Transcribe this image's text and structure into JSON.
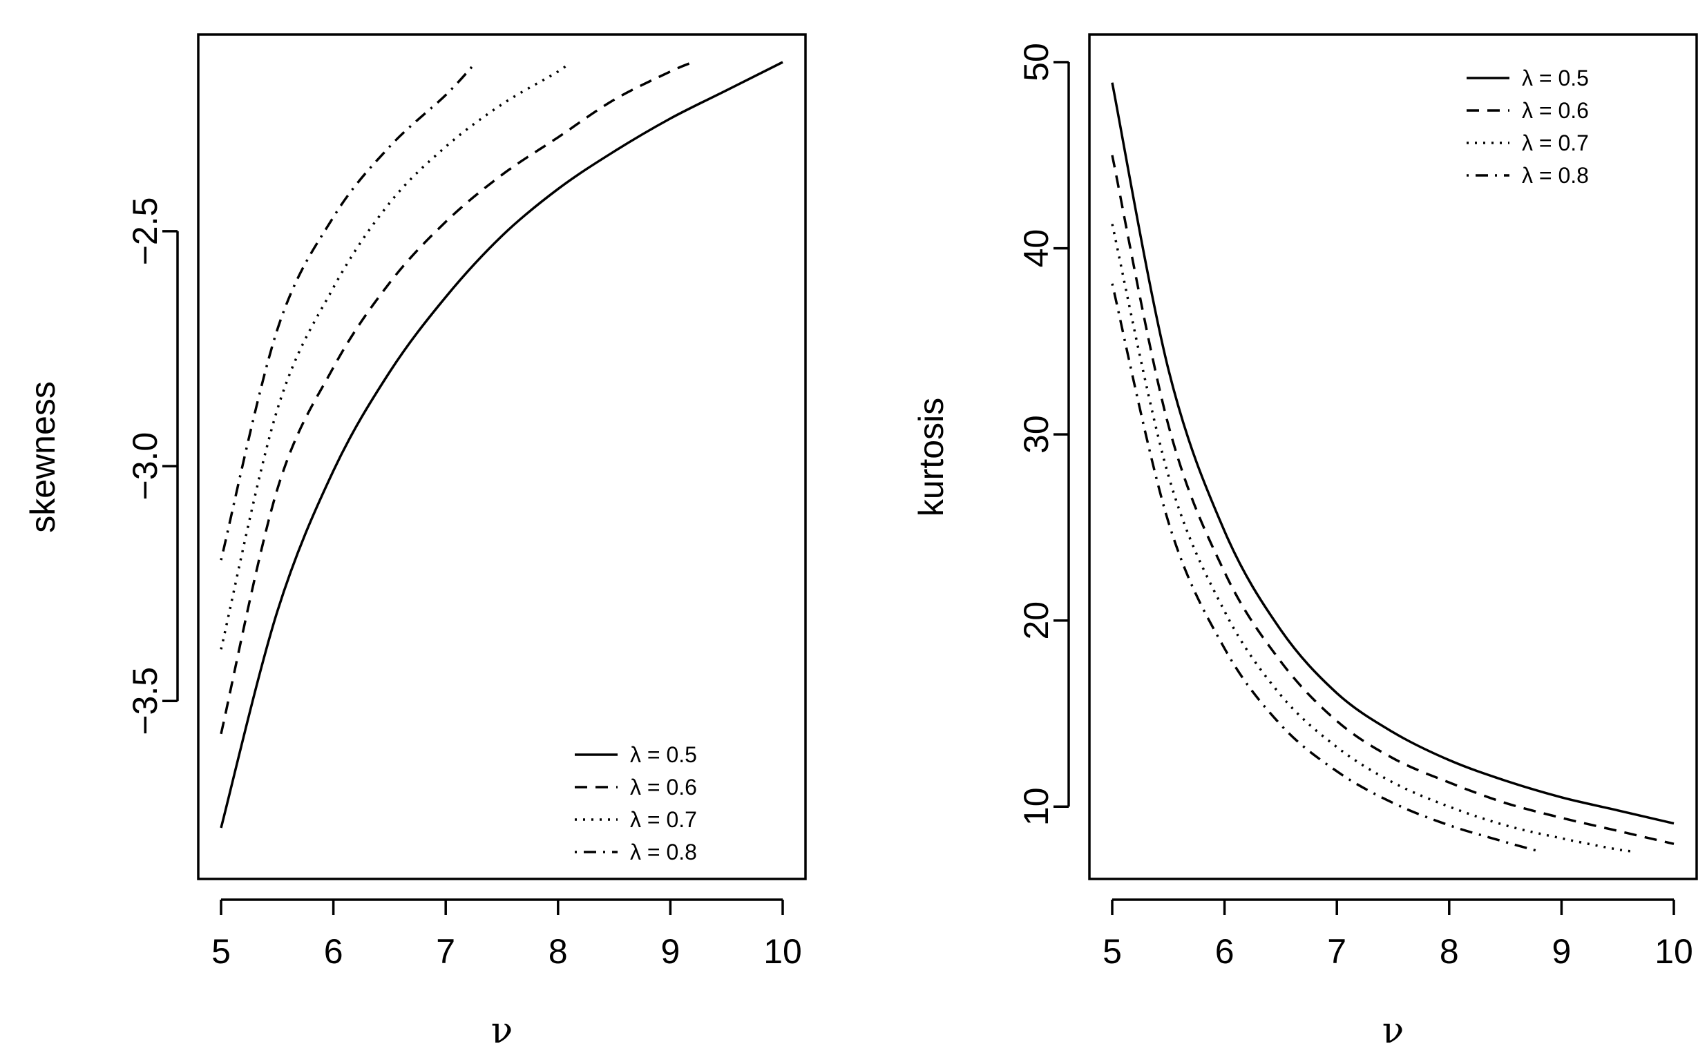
{
  "chart_data": [
    {
      "type": "line",
      "title": "",
      "xlabel": "ν",
      "ylabel": "skewness",
      "xlim": [
        5,
        10
      ],
      "ylim": [
        -3.82,
        -2.14
      ],
      "xticks": [
        "5",
        "6",
        "7",
        "8",
        "9",
        "10"
      ],
      "yticks": [
        "-3.5",
        "-3.0",
        "-2.5"
      ],
      "grid": false,
      "legend_position": "bottom-right",
      "series": [
        {
          "name": "λ = 0.5",
          "linestyle": "solid",
          "x": [
            5,
            5.5,
            6,
            6.5,
            7,
            7.5,
            8,
            8.5,
            9,
            9.5,
            10
          ],
          "y": [
            -3.77,
            -3.31,
            -3.01,
            -2.8,
            -2.64,
            -2.51,
            -2.41,
            -2.33,
            -2.26,
            -2.2,
            -2.14
          ]
        },
        {
          "name": "λ = 0.6",
          "linestyle": "dashed",
          "x": [
            5,
            5.5,
            6,
            6.5,
            7,
            7.5,
            8,
            8.5,
            9,
            9.2
          ],
          "y": [
            -3.57,
            -3.05,
            -2.79,
            -2.61,
            -2.48,
            -2.38,
            -2.3,
            -2.22,
            -2.16,
            -2.14
          ]
        },
        {
          "name": "λ = 0.7",
          "linestyle": "dotted",
          "x": [
            5,
            5.5,
            6,
            6.5,
            7,
            7.5,
            8,
            8.1
          ],
          "y": [
            -3.39,
            -2.88,
            -2.62,
            -2.44,
            -2.32,
            -2.23,
            -2.16,
            -2.14
          ]
        },
        {
          "name": "λ = 0.8",
          "linestyle": "dotdash",
          "x": [
            5,
            5.5,
            6,
            6.5,
            7,
            7.27
          ],
          "y": [
            -3.2,
            -2.71,
            -2.47,
            -2.32,
            -2.21,
            -2.14
          ]
        }
      ]
    },
    {
      "type": "line",
      "title": "",
      "xlabel": "ν",
      "ylabel": "kurtosis",
      "xlim": [
        5,
        10
      ],
      "ylim": [
        7.6,
        50
      ],
      "xticks": [
        "5",
        "6",
        "7",
        "8",
        "9",
        "10"
      ],
      "yticks": [
        "10",
        "20",
        "30",
        "40",
        "50"
      ],
      "grid": false,
      "legend_position": "top-right",
      "series": [
        {
          "name": "λ = 0.5",
          "linestyle": "solid",
          "x": [
            5,
            5.5,
            6,
            6.5,
            7,
            7.5,
            8,
            8.5,
            9,
            9.5,
            10
          ],
          "y": [
            48.9,
            33.5,
            24.8,
            19.5,
            16.1,
            14.0,
            12.5,
            11.4,
            10.5,
            9.8,
            9.1
          ]
        },
        {
          "name": "λ = 0.6",
          "linestyle": "dashed",
          "x": [
            5,
            5.5,
            6,
            6.5,
            7,
            7.5,
            8,
            8.5,
            9,
            9.5,
            10
          ],
          "y": [
            45.0,
            30.5,
            22.6,
            17.8,
            14.6,
            12.6,
            11.3,
            10.2,
            9.4,
            8.7,
            8.0
          ]
        },
        {
          "name": "λ = 0.7",
          "linestyle": "dotted",
          "x": [
            5,
            5.5,
            6,
            6.5,
            7,
            7.5,
            8,
            8.5,
            9,
            9.5,
            9.65
          ],
          "y": [
            41.3,
            27.8,
            20.5,
            16.0,
            13.2,
            11.3,
            10.0,
            9.0,
            8.3,
            7.7,
            7.6
          ]
        },
        {
          "name": "λ = 0.8",
          "linestyle": "dotdash",
          "x": [
            5,
            5.5,
            6,
            6.5,
            7,
            7.5,
            8,
            8.5,
            8.8
          ],
          "y": [
            38.1,
            25.3,
            18.5,
            14.4,
            11.9,
            10.2,
            9.0,
            8.1,
            7.6
          ]
        }
      ]
    }
  ]
}
